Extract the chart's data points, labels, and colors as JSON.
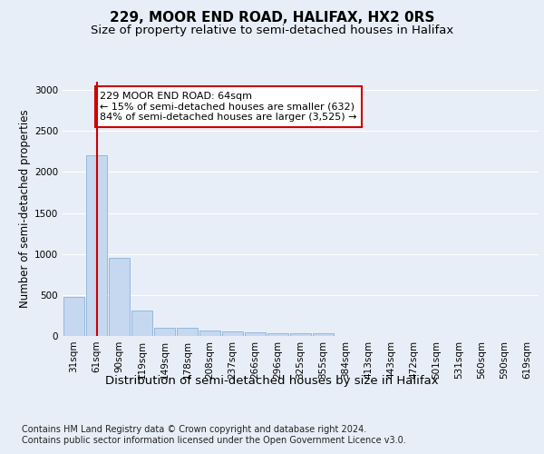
{
  "title1": "229, MOOR END ROAD, HALIFAX, HX2 0RS",
  "title2": "Size of property relative to semi-detached houses in Halifax",
  "xlabel": "Distribution of semi-detached houses by size in Halifax",
  "ylabel": "Number of semi-detached properties",
  "footnote1": "Contains HM Land Registry data © Crown copyright and database right 2024.",
  "footnote2": "Contains public sector information licensed under the Open Government Licence v3.0.",
  "annotation_title": "229 MOOR END ROAD: 64sqm",
  "annotation_line1": "← 15% of semi-detached houses are smaller (632)",
  "annotation_line2": "84% of semi-detached houses are larger (3,525) →",
  "bar_labels": [
    "31sqm",
    "61sqm",
    "90sqm",
    "119sqm",
    "149sqm",
    "178sqm",
    "208sqm",
    "237sqm",
    "266sqm",
    "296sqm",
    "325sqm",
    "355sqm",
    "384sqm",
    "413sqm",
    "443sqm",
    "472sqm",
    "501sqm",
    "531sqm",
    "560sqm",
    "590sqm",
    "619sqm"
  ],
  "bar_values": [
    480,
    2200,
    950,
    310,
    100,
    100,
    70,
    50,
    40,
    35,
    30,
    28,
    5,
    4,
    3,
    2,
    2,
    1,
    1,
    1,
    1
  ],
  "bar_color": "#c5d8f0",
  "bar_edge_color": "#7aa8d4",
  "red_line_x": 1,
  "ylim": [
    0,
    3100
  ],
  "yticks": [
    0,
    500,
    1000,
    1500,
    2000,
    2500,
    3000
  ],
  "bg_color": "#e8eef7",
  "plot_bg_color": "#e8eef7",
  "grid_color": "#ffffff",
  "annotation_box_color": "#ffffff",
  "annotation_border_color": "#cc0000",
  "red_line_color": "#cc0000",
  "title1_fontsize": 11,
  "title2_fontsize": 9.5,
  "annotation_fontsize": 8,
  "ylabel_fontsize": 8.5,
  "xlabel_fontsize": 9.5,
  "tick_fontsize": 7.5,
  "footnote_fontsize": 7
}
